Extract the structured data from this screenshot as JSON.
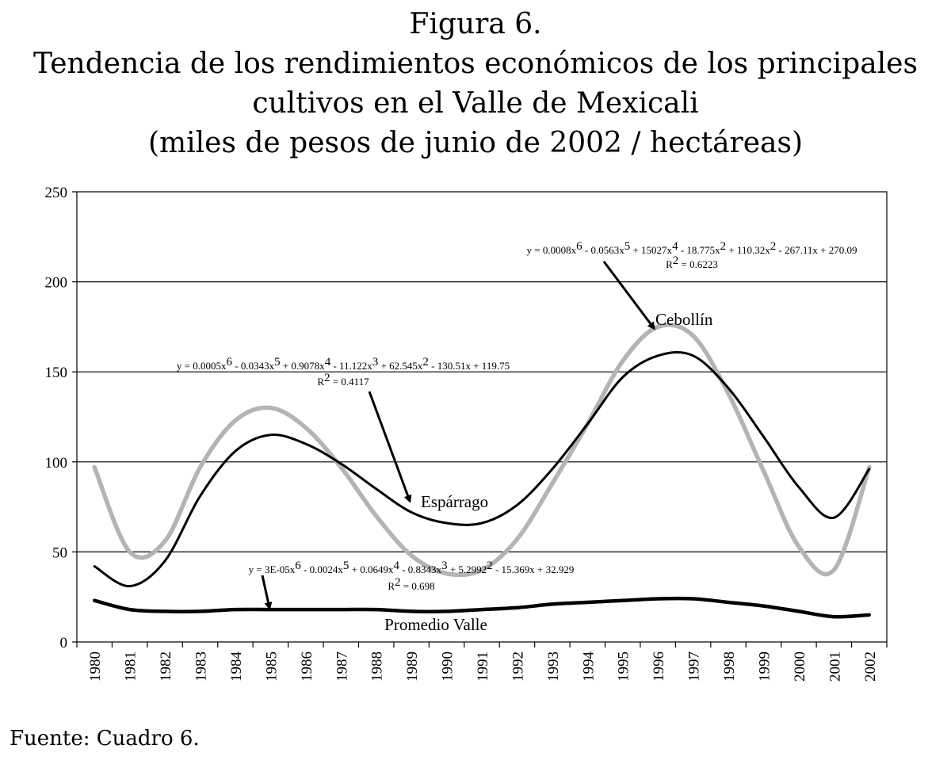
{
  "figure": {
    "label": "Figura 6.",
    "title_line1": "Tendencia de los rendimientos económicos de los principales",
    "title_line2": "cultivos en el Valle de Mexicali",
    "title_line3": "(miles de pesos de junio de 2002 / hectáreas)",
    "source": "Fuente: Cuadro 6."
  },
  "chart_data": {
    "type": "line",
    "xlabel": "",
    "ylabel": "",
    "ylim": [
      0,
      250
    ],
    "yticks": [
      0,
      50,
      100,
      150,
      200,
      250
    ],
    "grid": true,
    "categories": [
      "1980",
      "1981",
      "1982",
      "1983",
      "1984",
      "1985",
      "1986",
      "1987",
      "1988",
      "1989",
      "1990",
      "1991",
      "1992",
      "1993",
      "1994",
      "1995",
      "1996",
      "1997",
      "1998",
      "1999",
      "2000",
      "2001",
      "2002"
    ],
    "series": [
      {
        "name": "Cebollín",
        "color": "#b4b4b4",
        "values": [
          97,
          50,
          56,
          97,
          123,
          130,
          119,
          97,
          70,
          48,
          38,
          40,
          57,
          88,
          121,
          156,
          175,
          170,
          138,
          95,
          53,
          40,
          97
        ]
      },
      {
        "name": "Espárrago",
        "color": "#000000",
        "values": [
          42,
          31,
          45,
          81,
          106,
          115,
          110,
          99,
          85,
          72,
          66,
          66,
          76,
          96,
          121,
          147,
          159,
          159,
          141,
          114,
          86,
          69,
          96
        ]
      },
      {
        "name": "Promedio Valle",
        "color": "#000000",
        "values": [
          23,
          18,
          17,
          17,
          18,
          18,
          18,
          18,
          18,
          17,
          17,
          18,
          19,
          21,
          22,
          23,
          24,
          24,
          22,
          20,
          17,
          14,
          15
        ]
      }
    ],
    "annotations": [
      {
        "series": "Cebollín",
        "equation_parts": [
          "y = 0.0008x",
          "6",
          " - 0.0563x",
          "5",
          " + 15027x",
          "4",
          " - 18.775x",
          "2",
          " + 110.32x",
          "2",
          " - 267.11x + 270.09"
        ],
        "r2_label": "R",
        "r2_sup": "2",
        "r2_value": " = 0.6223"
      },
      {
        "series": "Espárrago",
        "equation_parts": [
          "y = 0.0005x",
          "6",
          " - 0.0343x",
          "5",
          " + 0.9078x",
          "4",
          " - 11.122x",
          "3",
          " + 62.545x",
          "2",
          " - 130.51x + 119.75"
        ],
        "r2_label": "R",
        "r2_sup": "2",
        "r2_value": " = 0.4117"
      },
      {
        "series": "Promedio Valle",
        "equation_parts": [
          "y = 3E-05x",
          "6",
          " - 0.0024x",
          "5",
          " + 0.0649x",
          "4",
          " - 0.8343x",
          "3",
          " + 5.2992",
          "2",
          " - 15.369x + 32.929"
        ],
        "r2_label": "R",
        "r2_sup": "2",
        "r2_value": " = 0.698"
      }
    ]
  }
}
